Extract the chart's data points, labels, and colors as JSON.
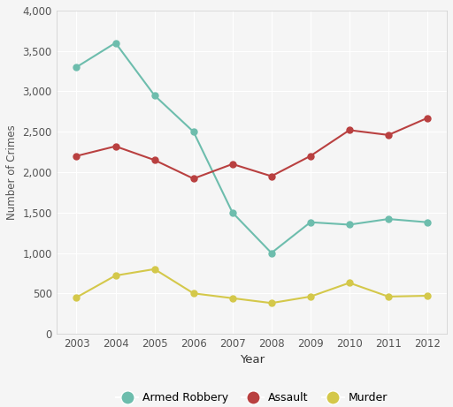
{
  "years": [
    2003,
    2004,
    2005,
    2006,
    2007,
    2008,
    2009,
    2010,
    2011,
    2012
  ],
  "armed_robbery": [
    3300,
    3600,
    2950,
    2500,
    1500,
    1000,
    1380,
    1350,
    1420,
    1380
  ],
  "assault": [
    2200,
    2320,
    2150,
    1920,
    2100,
    1950,
    2200,
    2520,
    2460,
    2670
  ],
  "murder": [
    450,
    720,
    800,
    500,
    440,
    380,
    460,
    630,
    460,
    470
  ],
  "armed_robbery_color": "#6dbdad",
  "assault_color": "#b94040",
  "murder_color": "#d4c84a",
  "xlabel": "Year",
  "ylabel": "Number of Crimes",
  "ylim": [
    0,
    4000
  ],
  "yticks": [
    0,
    500,
    1000,
    1500,
    2000,
    2500,
    3000,
    3500,
    4000
  ],
  "background_color": "#f5f5f5",
  "plot_bg_color": "#f5f5f5",
  "grid_color": "#ffffff",
  "legend_labels": [
    "Armed Robbery",
    "Assault",
    "Murder"
  ],
  "marker": "o",
  "markersize": 5,
  "linewidth": 1.5
}
